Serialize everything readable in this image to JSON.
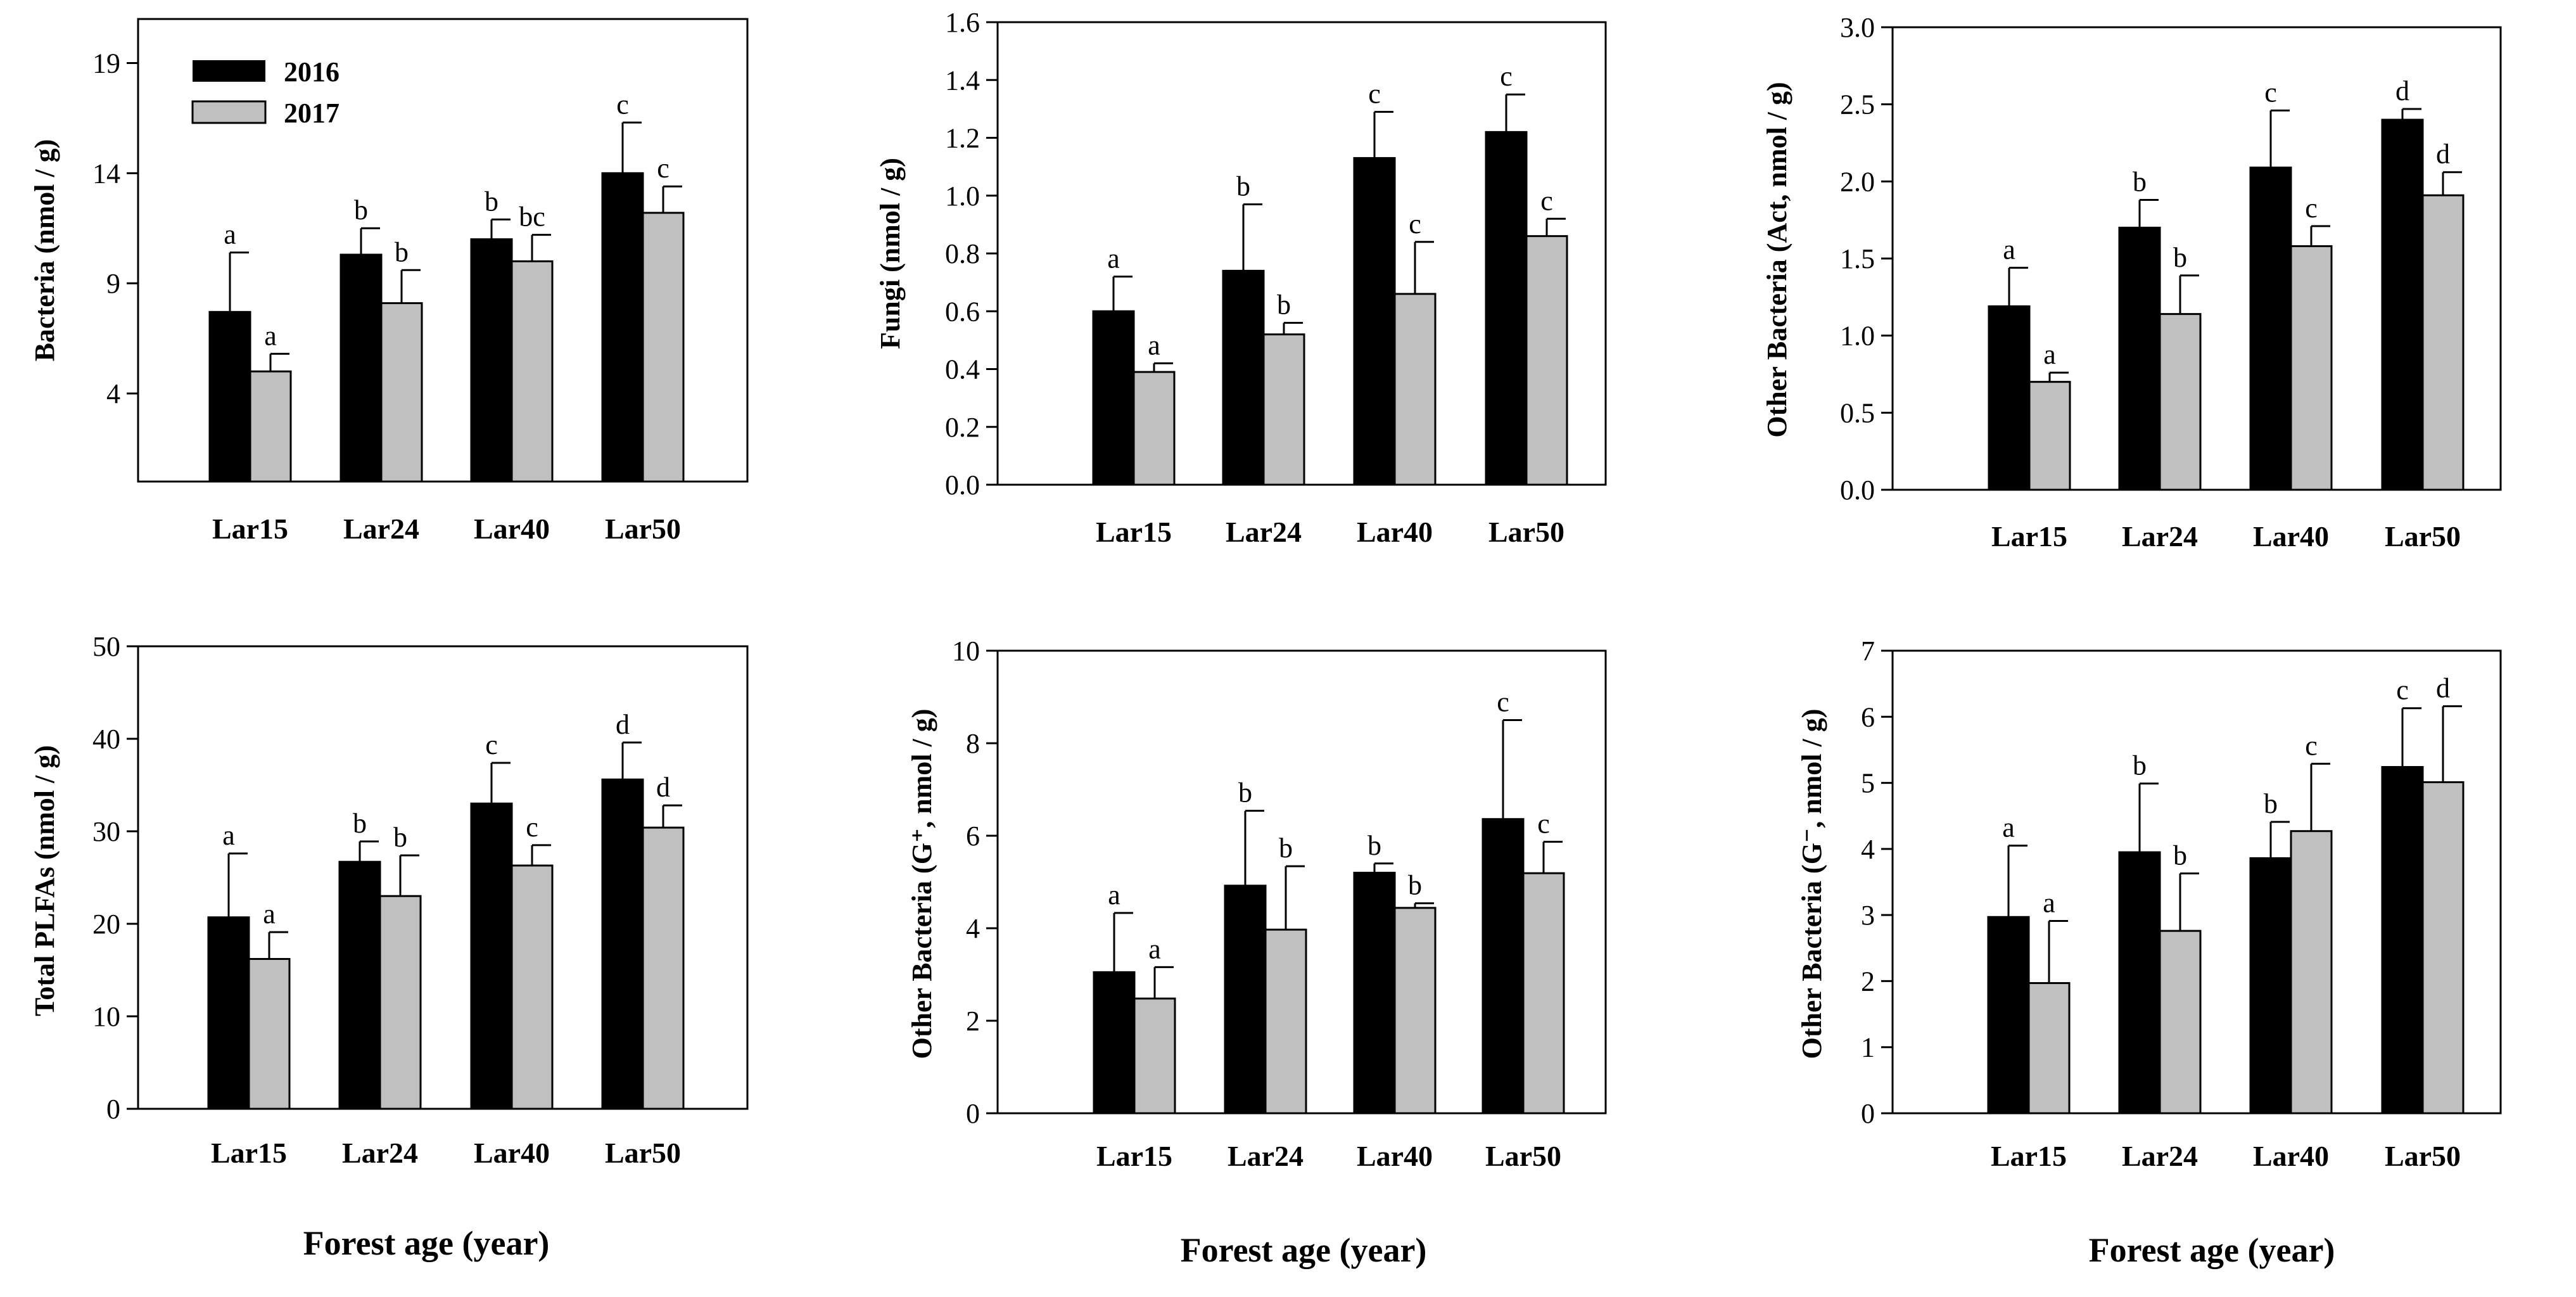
{
  "figure": {
    "xlabel": "Forest age (year)",
    "legend": {
      "position": "top-left",
      "entries": [
        {
          "name": "2016",
          "color": "#000000"
        },
        {
          "name": "2017",
          "color": "#c0c0c0"
        }
      ]
    }
  },
  "chart_data": [
    {
      "type": "bar",
      "panel": "top-left",
      "ylabel": "Bacteria (nmol / g)",
      "categories": [
        "Lar15",
        "Lar24",
        "Lar40",
        "Lar50"
      ],
      "ylim": [
        0,
        21
      ],
      "yticks": [
        4,
        9,
        14,
        19
      ],
      "series": [
        {
          "name": "2016",
          "color": "#000000",
          "values": [
            7.7,
            10.3,
            11.0,
            14.0
          ],
          "errors": [
            2.7,
            1.2,
            0.9,
            2.3
          ],
          "letters": [
            "a",
            "b",
            "b",
            "c"
          ]
        },
        {
          "name": "2017",
          "color": "#c0c0c0",
          "values": [
            5.0,
            8.1,
            10.0,
            12.2
          ],
          "errors": [
            0.8,
            1.5,
            1.2,
            1.2
          ],
          "letters": [
            "a",
            "b",
            "bc",
            "c"
          ]
        }
      ]
    },
    {
      "type": "bar",
      "panel": "top-middle",
      "ylabel": "Fungi (nmol / g)",
      "categories": [
        "Lar15",
        "Lar24",
        "Lar40",
        "Lar50"
      ],
      "ylim": [
        0,
        1.6
      ],
      "yticks": [
        "0.0",
        "0.2",
        "0.4",
        "0.6",
        "0.8",
        "1.0",
        "1.2",
        "1.4",
        "1.6"
      ],
      "series": [
        {
          "name": "2016",
          "color": "#000000",
          "values": [
            0.6,
            0.74,
            1.13,
            1.22
          ],
          "errors": [
            0.12,
            0.23,
            0.16,
            0.13
          ],
          "letters": [
            "a",
            "b",
            "c",
            "c"
          ]
        },
        {
          "name": "2017",
          "color": "#c0c0c0",
          "values": [
            0.39,
            0.52,
            0.66,
            0.86
          ],
          "errors": [
            0.03,
            0.04,
            0.18,
            0.06
          ],
          "letters": [
            "a",
            "b",
            "c",
            "c"
          ]
        }
      ]
    },
    {
      "type": "bar",
      "panel": "top-right",
      "ylabel": "Other Bacteria (Act, nmol / g)",
      "categories": [
        "Lar15",
        "Lar24",
        "Lar40",
        "Lar50"
      ],
      "ylim": [
        0,
        3.0
      ],
      "yticks": [
        "0.0",
        "0.5",
        "1.0",
        "1.5",
        "2.0",
        "2.5",
        "3.0"
      ],
      "series": [
        {
          "name": "2016",
          "color": "#000000",
          "values": [
            1.19,
            1.7,
            2.09,
            2.4
          ],
          "errors": [
            0.25,
            0.18,
            0.37,
            0.07
          ],
          "letters": [
            "a",
            "b",
            "c",
            "d"
          ]
        },
        {
          "name": "2017",
          "color": "#c0c0c0",
          "values": [
            0.7,
            1.14,
            1.58,
            1.91
          ],
          "errors": [
            0.06,
            0.25,
            0.13,
            0.15
          ],
          "letters": [
            "a",
            "b",
            "c",
            "d"
          ]
        }
      ]
    },
    {
      "type": "bar",
      "panel": "bottom-left",
      "ylabel": "Total PLFAs (nmol / g)",
      "categories": [
        "Lar15",
        "Lar24",
        "Lar40",
        "Lar50"
      ],
      "ylim": [
        0,
        50
      ],
      "yticks": [
        0,
        10,
        20,
        30,
        40,
        50
      ],
      "series": [
        {
          "name": "2016",
          "color": "#000000",
          "values": [
            20.7,
            26.7,
            33.0,
            35.6
          ],
          "errors": [
            6.9,
            2.2,
            4.4,
            4.0
          ],
          "letters": [
            "a",
            "b",
            "c",
            "d"
          ]
        },
        {
          "name": "2017",
          "color": "#c0c0c0",
          "values": [
            16.2,
            23.0,
            26.3,
            30.4
          ],
          "errors": [
            2.9,
            4.4,
            2.2,
            2.4
          ],
          "letters": [
            "a",
            "b",
            "c",
            "d"
          ]
        }
      ]
    },
    {
      "type": "bar",
      "panel": "bottom-middle",
      "ylabel": "Other Bacteria (G⁺, nmol / g)",
      "categories": [
        "Lar15",
        "Lar24",
        "Lar40",
        "Lar50"
      ],
      "ylim": [
        0,
        10
      ],
      "yticks": [
        0,
        2,
        4,
        6,
        8,
        10
      ],
      "series": [
        {
          "name": "2016",
          "color": "#000000",
          "values": [
            3.05,
            4.92,
            5.2,
            6.36
          ],
          "errors": [
            1.28,
            1.62,
            0.2,
            2.14
          ],
          "letters": [
            "a",
            "b",
            "b",
            "c"
          ]
        },
        {
          "name": "2017",
          "color": "#c0c0c0",
          "values": [
            2.48,
            3.97,
            4.44,
            5.19
          ],
          "errors": [
            0.68,
            1.37,
            0.1,
            0.68
          ],
          "letters": [
            "a",
            "b",
            "b",
            "c"
          ]
        }
      ]
    },
    {
      "type": "bar",
      "panel": "bottom-right",
      "ylabel": "Other Bacteria (G⁻, nmol / g)",
      "categories": [
        "Lar15",
        "Lar24",
        "Lar40",
        "Lar50"
      ],
      "ylim": [
        0,
        7
      ],
      "yticks": [
        0,
        1,
        2,
        3,
        4,
        5,
        6,
        7
      ],
      "series": [
        {
          "name": "2016",
          "color": "#000000",
          "values": [
            2.97,
            3.95,
            3.86,
            5.24
          ],
          "errors": [
            1.08,
            1.04,
            0.55,
            0.89
          ],
          "letters": [
            "a",
            "b",
            "b",
            "c"
          ]
        },
        {
          "name": "2017",
          "color": "#c0c0c0",
          "values": [
            1.97,
            2.76,
            4.27,
            5.01
          ],
          "errors": [
            0.94,
            0.87,
            1.02,
            1.15
          ],
          "letters": [
            "a",
            "b",
            "c",
            "d"
          ]
        }
      ]
    }
  ]
}
